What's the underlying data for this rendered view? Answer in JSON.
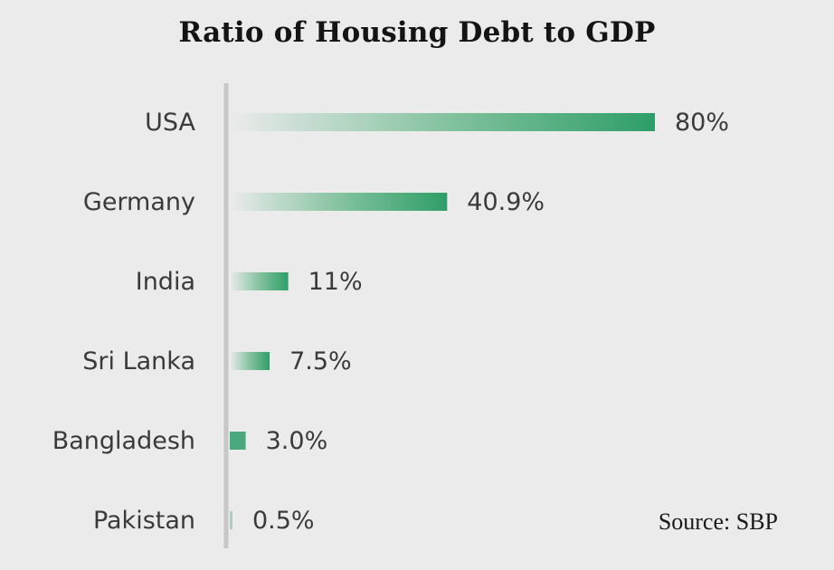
{
  "chart_data": {
    "type": "bar",
    "orientation": "horizontal",
    "title": "Ratio of Housing Debt to GDP",
    "categories": [
      "USA",
      "Germany",
      "India",
      "Sri Lanka",
      "Bangladesh",
      "Pakistan"
    ],
    "values": [
      80,
      40.9,
      11,
      7.5,
      3.0,
      0.5
    ],
    "value_labels": [
      "80%",
      "40.9%",
      "11%",
      "7.5%",
      "3.0%",
      "0.5%"
    ],
    "xlim": [
      0,
      80
    ],
    "xlabel": "",
    "ylabel": "",
    "grid": false,
    "legend": "none",
    "source": "Source: SBP",
    "colors": {
      "bar": "#2e9e68",
      "bar_fade": "#ebebeb",
      "axis": "#c7c7c7",
      "text": "#3a3a3a",
      "title": "#141414",
      "background": "#ebebeb"
    }
  }
}
